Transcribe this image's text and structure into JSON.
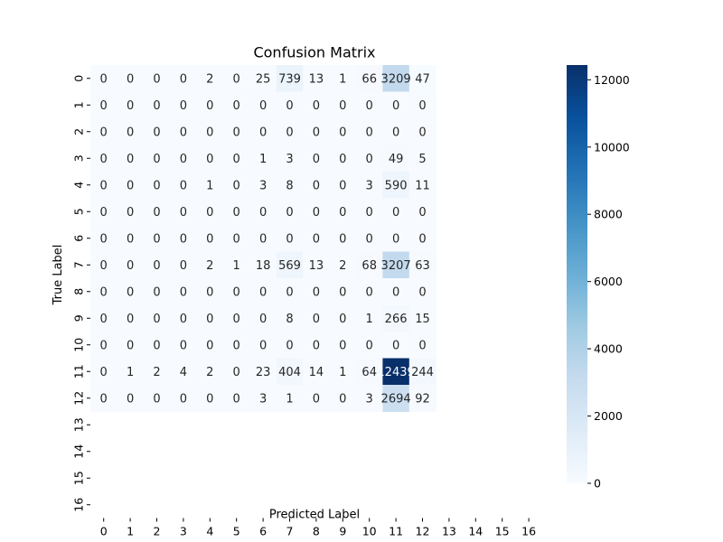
{
  "chart_data": {
    "type": "heatmap",
    "title": "Confusion Matrix",
    "xlabel": "Predicted Label",
    "ylabel": "True Label",
    "x_categories": [
      "0",
      "1",
      "2",
      "3",
      "4",
      "5",
      "6",
      "7",
      "8",
      "9",
      "10",
      "11",
      "12",
      "13",
      "14",
      "15",
      "16"
    ],
    "y_categories": [
      "0",
      "1",
      "2",
      "3",
      "4",
      "5",
      "6",
      "7",
      "8",
      "9",
      "10",
      "11",
      "12",
      "13",
      "14",
      "15",
      "16"
    ],
    "rows_with_values": [
      "0",
      "1",
      "2",
      "3",
      "4",
      "5",
      "6",
      "7",
      "8",
      "9",
      "10",
      "11",
      "12"
    ],
    "cols_with_values": [
      "0",
      "1",
      "2",
      "3",
      "4",
      "5",
      "6",
      "7",
      "8",
      "9",
      "10",
      "11",
      "12"
    ],
    "matrix": [
      [
        0,
        0,
        0,
        0,
        2,
        0,
        25,
        739,
        13,
        1,
        66,
        3209,
        47
      ],
      [
        0,
        0,
        0,
        0,
        0,
        0,
        0,
        0,
        0,
        0,
        0,
        0,
        0
      ],
      [
        0,
        0,
        0,
        0,
        0,
        0,
        0,
        0,
        0,
        0,
        0,
        0,
        0
      ],
      [
        0,
        0,
        0,
        0,
        0,
        0,
        1,
        3,
        0,
        0,
        0,
        49,
        5
      ],
      [
        0,
        0,
        0,
        0,
        1,
        0,
        3,
        8,
        0,
        0,
        3,
        590,
        11
      ],
      [
        0,
        0,
        0,
        0,
        0,
        0,
        0,
        0,
        0,
        0,
        0,
        0,
        0
      ],
      [
        0,
        0,
        0,
        0,
        0,
        0,
        0,
        0,
        0,
        0,
        0,
        0,
        0
      ],
      [
        0,
        0,
        0,
        0,
        2,
        1,
        18,
        569,
        13,
        2,
        68,
        3207,
        63
      ],
      [
        0,
        0,
        0,
        0,
        0,
        0,
        0,
        0,
        0,
        0,
        0,
        0,
        0
      ],
      [
        0,
        0,
        0,
        0,
        0,
        0,
        0,
        8,
        0,
        0,
        1,
        266,
        15
      ],
      [
        0,
        0,
        0,
        0,
        0,
        0,
        0,
        0,
        0,
        0,
        0,
        0,
        0
      ],
      [
        0,
        1,
        2,
        4,
        2,
        0,
        23,
        404,
        14,
        1,
        64,
        12439,
        244
      ],
      [
        0,
        0,
        0,
        0,
        0,
        0,
        3,
        1,
        0,
        0,
        3,
        2694,
        92
      ]
    ],
    "cell_labels": [
      [
        "0",
        "0",
        "0",
        "0",
        "2",
        "0",
        "25",
        "739",
        "13",
        "1",
        "66",
        "3209",
        "47"
      ],
      [
        "0",
        "0",
        "0",
        "0",
        "0",
        "0",
        "0",
        "0",
        "0",
        "0",
        "0",
        "0",
        "0"
      ],
      [
        "0",
        "0",
        "0",
        "0",
        "0",
        "0",
        "0",
        "0",
        "0",
        "0",
        "0",
        "0",
        "0"
      ],
      [
        "0",
        "0",
        "0",
        "0",
        "0",
        "0",
        "1",
        "3",
        "0",
        "0",
        "0",
        "49",
        "5"
      ],
      [
        "0",
        "0",
        "0",
        "0",
        "1",
        "0",
        "3",
        "8",
        "0",
        "0",
        "3",
        "590",
        "11"
      ],
      [
        "0",
        "0",
        "0",
        "0",
        "0",
        "0",
        "0",
        "0",
        "0",
        "0",
        "0",
        "0",
        "0"
      ],
      [
        "0",
        "0",
        "0",
        "0",
        "0",
        "0",
        "0",
        "0",
        "0",
        "0",
        "0",
        "0",
        "0"
      ],
      [
        "0",
        "0",
        "0",
        "0",
        "2",
        "1",
        "18",
        "569",
        "13",
        "2",
        "68",
        "3207",
        "63"
      ],
      [
        "0",
        "0",
        "0",
        "0",
        "0",
        "0",
        "0",
        "0",
        "0",
        "0",
        "0",
        "0",
        "0"
      ],
      [
        "0",
        "0",
        "0",
        "0",
        "0",
        "0",
        "0",
        "8",
        "0",
        "0",
        "1",
        "266",
        "15"
      ],
      [
        "0",
        "0",
        "0",
        "0",
        "0",
        "0",
        "0",
        "0",
        "0",
        "0",
        "0",
        "0",
        "0"
      ],
      [
        "0",
        "1",
        "2",
        "4",
        "2",
        "0",
        "23",
        "404",
        "14",
        "1",
        "64",
        "12439",
        "244"
      ],
      [
        "0",
        "0",
        "0",
        "0",
        "0",
        "0",
        "3",
        "1",
        "0",
        "0",
        "3",
        "2694",
        "92"
      ]
    ],
    "colorbar": {
      "colormap": "Blues",
      "min": 0,
      "max": 12439,
      "ticks": [
        0,
        2000,
        4000,
        6000,
        8000,
        10000,
        12000
      ],
      "tick_labels": [
        "0",
        "2000",
        "4000",
        "6000",
        "8000",
        "10000",
        "12000"
      ]
    }
  }
}
